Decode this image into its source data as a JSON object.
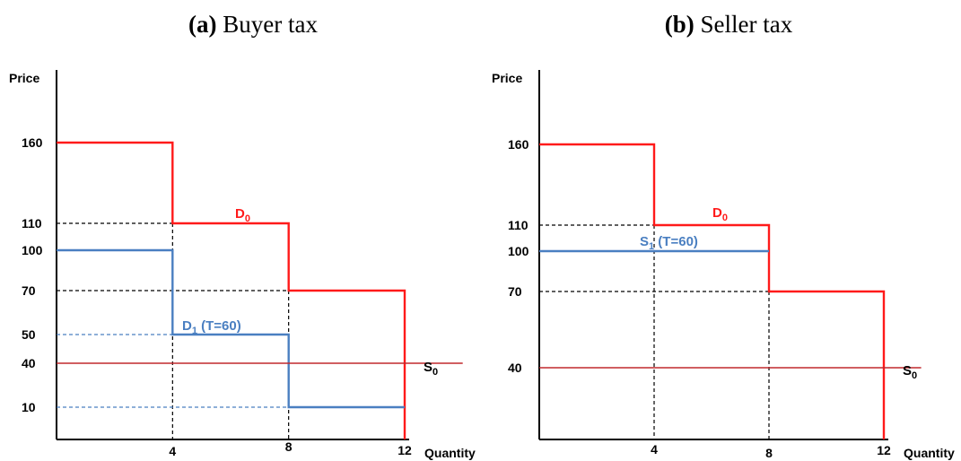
{
  "chart_data": [
    {
      "type": "line",
      "title_prefix": "(a)",
      "title": "Buyer tax",
      "xlabel": "Quantity",
      "ylabel": "Price",
      "x_ticks": [
        4,
        8,
        12
      ],
      "y_ticks": [
        160,
        110,
        100,
        70,
        50,
        40,
        10
      ],
      "ylim": [
        0,
        180
      ],
      "xlim": [
        0,
        14
      ],
      "series": [
        {
          "name": "D0",
          "label_main": "D",
          "label_sub": "0",
          "color": "#ff1a1a",
          "kind": "step",
          "points": [
            [
              0,
              160
            ],
            [
              4,
              160
            ],
            [
              4,
              110
            ],
            [
              8,
              110
            ],
            [
              8,
              70
            ],
            [
              12,
              70
            ],
            [
              12,
              0
            ]
          ]
        },
        {
          "name": "D1 (T=60)",
          "label_main": "D",
          "label_sub": "1",
          "label_rest": " (T=60)",
          "color": "#4a7fc1",
          "kind": "step",
          "points": [
            [
              0,
              100
            ],
            [
              4,
              100
            ],
            [
              4,
              50
            ],
            [
              8,
              50
            ],
            [
              8,
              10
            ],
            [
              12,
              10
            ]
          ]
        },
        {
          "name": "S0",
          "label_main": "S",
          "label_sub": "0",
          "color": "#c0282d",
          "kind": "horizontal",
          "points": [
            [
              0,
              40
            ],
            [
              14.0,
              40
            ]
          ]
        }
      ]
    },
    {
      "type": "line",
      "title_prefix": "(b)",
      "title": "Seller tax",
      "xlabel": "Quantity",
      "ylabel": "Price",
      "x_ticks": [
        4,
        8,
        12
      ],
      "y_ticks": [
        160,
        110,
        100,
        70,
        40
      ],
      "ylim": [
        0,
        180
      ],
      "xlim": [
        0,
        14
      ],
      "series": [
        {
          "name": "D0",
          "label_main": "D",
          "label_sub": "0",
          "color": "#ff1a1a",
          "kind": "step",
          "points": [
            [
              0,
              160
            ],
            [
              4,
              160
            ],
            [
              4,
              110
            ],
            [
              8,
              110
            ],
            [
              8,
              70
            ],
            [
              12,
              70
            ],
            [
              12,
              0
            ]
          ]
        },
        {
          "name": "S1 (T=60)",
          "label_main": "S",
          "label_sub": "1",
          "label_rest": " (T=60)",
          "color": "#4a7fc1",
          "kind": "horizontal",
          "points": [
            [
              0,
              100
            ],
            [
              8,
              100
            ]
          ]
        },
        {
          "name": "S0",
          "label_main": "S",
          "label_sub": "0",
          "color": "#c0282d",
          "kind": "horizontal",
          "points": [
            [
              0,
              40
            ],
            [
              13.3,
              40
            ]
          ]
        }
      ]
    }
  ]
}
